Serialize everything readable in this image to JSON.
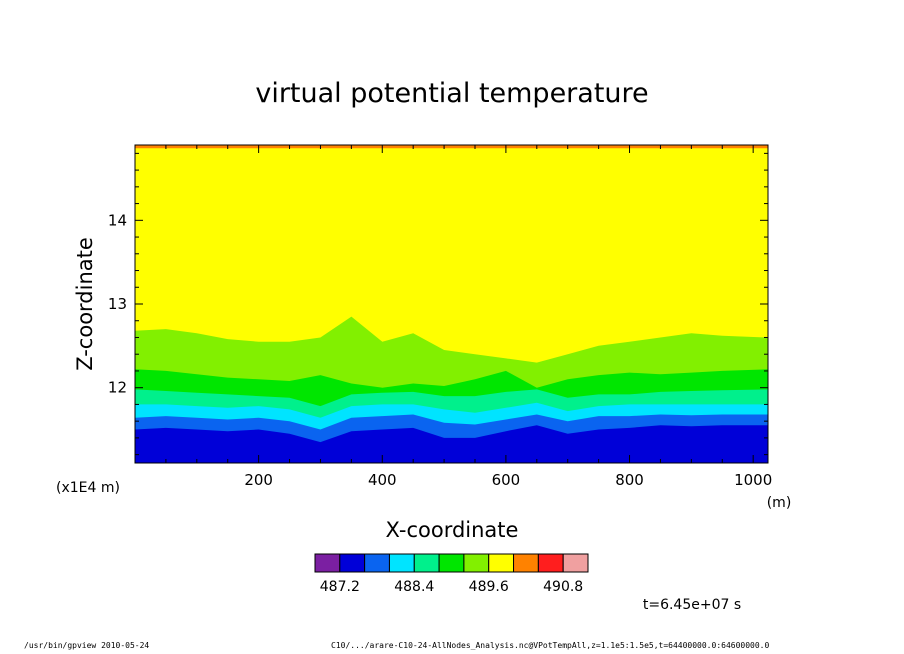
{
  "chart_data": {
    "type": "heatmap",
    "title": "virtual potential temperature",
    "xlabel": "X-coordinate",
    "ylabel": "Z-coordinate",
    "x_unit": "(m)",
    "y_unit": "(x1E4 m)",
    "xlim": [
      0,
      1024
    ],
    "ylim": [
      11.1,
      14.9
    ],
    "x_ticks": [
      200,
      400,
      600,
      800,
      1000
    ],
    "y_ticks": [
      12,
      13,
      14
    ],
    "colorbar": {
      "levels": [
        486.8,
        487.2,
        487.6,
        488.0,
        488.4,
        488.8,
        489.2,
        489.6,
        490.0,
        490.4,
        490.8,
        491.2
      ],
      "labeled": [
        "487.2",
        "488.4",
        "489.6",
        "490.8"
      ],
      "colors": [
        "#7b1fa2",
        "#0000d8",
        "#0a64f0",
        "#00e4ff",
        "#00f08c",
        "#00e600",
        "#82f000",
        "#ffff00",
        "#ff8200",
        "#ff1e1e",
        "#f0a0a0"
      ]
    },
    "bands": [
      {
        "level": "486.8-487.2",
        "color": "#0000d8",
        "z_top": [
          11.5,
          11.52,
          11.5,
          11.48,
          11.5,
          11.45,
          11.35,
          11.48,
          11.5,
          11.52,
          11.4,
          11.4,
          11.48,
          11.55,
          11.45,
          11.5,
          11.52,
          11.55,
          11.54,
          11.55,
          11.55
        ]
      },
      {
        "level": "487.2-487.6",
        "color": "#0a64f0",
        "z_top": [
          11.64,
          11.66,
          11.64,
          11.62,
          11.64,
          11.6,
          11.5,
          11.64,
          11.66,
          11.68,
          11.58,
          11.56,
          11.62,
          11.68,
          11.6,
          11.66,
          11.66,
          11.68,
          11.67,
          11.68,
          11.68
        ]
      },
      {
        "level": "487.6-488.0",
        "color": "#00e4ff",
        "z_top": [
          11.8,
          11.8,
          11.78,
          11.76,
          11.78,
          11.74,
          11.64,
          11.78,
          11.8,
          11.8,
          11.74,
          11.7,
          11.76,
          11.82,
          11.72,
          11.78,
          11.8,
          11.8,
          11.8,
          11.8,
          11.8
        ]
      },
      {
        "level": "488.0-488.4",
        "color": "#00f08c",
        "z_top": [
          11.98,
          11.96,
          11.94,
          11.92,
          11.9,
          11.88,
          11.78,
          11.92,
          11.94,
          11.95,
          11.9,
          11.9,
          11.95,
          11.98,
          11.88,
          11.92,
          11.92,
          11.95,
          11.96,
          11.97,
          11.98
        ]
      },
      {
        "level": "488.4-488.8",
        "color": "#00e600",
        "z_top": [
          12.22,
          12.2,
          12.16,
          12.12,
          12.1,
          12.08,
          12.15,
          12.05,
          12.0,
          12.05,
          12.02,
          12.1,
          12.2,
          12.0,
          12.1,
          12.15,
          12.18,
          12.16,
          12.18,
          12.2,
          12.22
        ]
      },
      {
        "level": "488.8-489.2",
        "color": "#82f000",
        "z_top": [
          12.68,
          12.7,
          12.65,
          12.58,
          12.55,
          12.55,
          12.6,
          12.85,
          12.55,
          12.65,
          12.45,
          12.4,
          12.35,
          12.3,
          12.4,
          12.5,
          12.55,
          12.6,
          12.65,
          12.62,
          12.6
        ]
      },
      {
        "level": "489.2-489.6",
        "color": "#ffff00",
        "z_top": [
          14.86,
          14.86,
          14.86,
          14.86,
          14.86,
          14.86,
          14.86,
          14.86,
          14.86,
          14.86,
          14.86,
          14.86,
          14.86,
          14.86,
          14.86,
          14.86,
          14.86,
          14.86,
          14.86,
          14.86,
          14.86
        ]
      },
      {
        "level": "489.6-490.0",
        "color": "#ff8200",
        "z_top": [
          14.9,
          14.9,
          14.9,
          14.9,
          14.9,
          14.9,
          14.9,
          14.9,
          14.9,
          14.9,
          14.9,
          14.9,
          14.9,
          14.9,
          14.9,
          14.9,
          14.9,
          14.9,
          14.9,
          14.9,
          14.9
        ]
      }
    ],
    "band_x": [
      0,
      50,
      100,
      150,
      200,
      250,
      300,
      350,
      400,
      450,
      500,
      550,
      600,
      650,
      700,
      750,
      800,
      850,
      900,
      950,
      1024
    ],
    "time_label": "t=6.45e+07 s"
  },
  "footer": {
    "program": "/usr/bin/gpview   2010-05-24",
    "source": "C10/.../arare-C10-24-AllNodes_Analysis.nc@VPotTempAll,z=1.1e5:1.5e5,t=64400000.0:64600000.0"
  }
}
